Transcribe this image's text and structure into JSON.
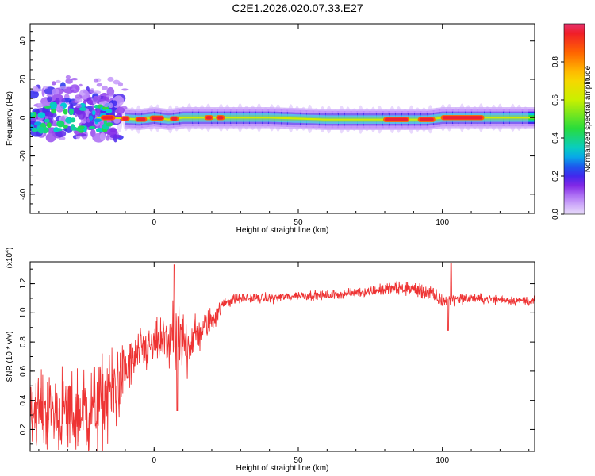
{
  "title": "C2E1.2026.020.07.33.E27",
  "chart_data": [
    {
      "type": "heatmap",
      "name": "spectrogram",
      "xlabel": "Height of straight line (km)",
      "ylabel": "Frequency (Hz)",
      "xlim": [
        -43,
        132
      ],
      "ylim": [
        -50,
        49
      ],
      "xticks": [
        0,
        50,
        100
      ],
      "yticks": [
        -40,
        -20,
        0,
        20,
        40
      ],
      "colorbar": {
        "label": "Normalized spectral amplitude",
        "range": [
          0,
          1
        ],
        "ticks": [
          0.0,
          0.2,
          0.4,
          0.6,
          0.8
        ]
      },
      "main_band_center_hz": [
        [
          -43,
          0
        ],
        [
          -35,
          0
        ],
        [
          -25,
          0
        ],
        [
          -15,
          0
        ],
        [
          -5,
          -1
        ],
        [
          0,
          0
        ],
        [
          5,
          -1
        ],
        [
          10,
          0
        ],
        [
          20,
          0
        ],
        [
          40,
          0
        ],
        [
          60,
          -1
        ],
        [
          80,
          -1
        ],
        [
          88,
          -1
        ],
        [
          92,
          -1
        ],
        [
          95,
          -1
        ],
        [
          100,
          0
        ],
        [
          132,
          0
        ]
      ],
      "high_amplitude_segments_km": [
        [
          -18,
          -14
        ],
        [
          -11,
          -9
        ],
        [
          -6,
          -3
        ],
        [
          -1,
          3
        ],
        [
          6,
          8
        ],
        [
          18,
          20
        ],
        [
          22,
          24
        ],
        [
          80,
          88
        ],
        [
          92,
          97
        ],
        [
          100,
          114
        ]
      ]
    },
    {
      "type": "line",
      "name": "snr",
      "xlabel": "Height of straight line (km)",
      "ylabel": "SNR (10 * v/v)",
      "yscale_note": "(x10",
      "yscale_exp": "4",
      "xlim": [
        -43,
        132
      ],
      "ylim": [
        0.05,
        1.35
      ],
      "xticks": [
        0,
        50,
        100
      ],
      "yticks": [
        0.2,
        0.4,
        0.6,
        0.8,
        1.0,
        1.2
      ],
      "color": "#ee3333",
      "envelope": {
        "x": [
          -43,
          -35,
          -28,
          -20,
          -15,
          -10,
          -5,
          0,
          5,
          10,
          15,
          20,
          25,
          30,
          40,
          50,
          60,
          70,
          80,
          88,
          95,
          100,
          105,
          110,
          120,
          132
        ],
        "mean": [
          0.35,
          0.32,
          0.3,
          0.35,
          0.45,
          0.6,
          0.72,
          0.78,
          0.82,
          0.78,
          0.85,
          0.95,
          1.08,
          1.1,
          1.1,
          1.12,
          1.12,
          1.14,
          1.16,
          1.17,
          1.14,
          1.08,
          1.1,
          1.1,
          1.09,
          1.08
        ],
        "amp": [
          0.2,
          0.25,
          0.28,
          0.3,
          0.3,
          0.18,
          0.15,
          0.12,
          0.2,
          0.25,
          0.12,
          0.08,
          0.04,
          0.03,
          0.03,
          0.03,
          0.03,
          0.03,
          0.04,
          0.05,
          0.05,
          0.05,
          0.04,
          0.03,
          0.03,
          0.03
        ]
      },
      "spikes": [
        [
          7,
          1.33
        ],
        [
          8,
          0.33
        ],
        [
          103,
          1.34
        ],
        [
          102,
          0.88
        ]
      ]
    }
  ]
}
